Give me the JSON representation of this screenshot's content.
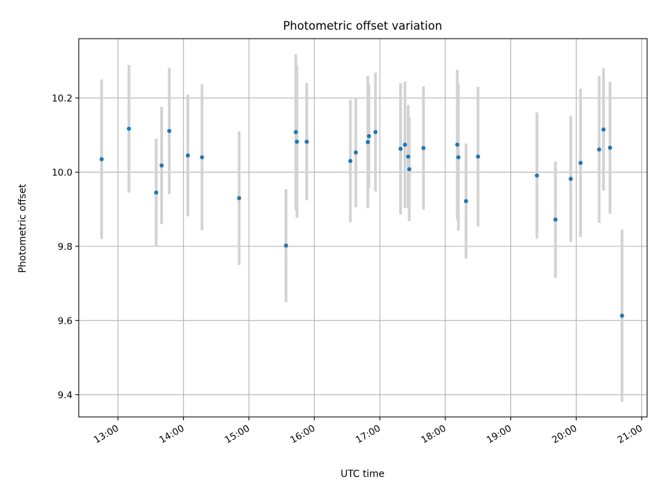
{
  "chart_data": {
    "type": "scatter",
    "title": "Photometric offset variation",
    "xlabel": "UTC time",
    "ylabel": "Photometric offset",
    "x_ticks": [
      "13:00",
      "14:00",
      "15:00",
      "16:00",
      "17:00",
      "18:00",
      "19:00",
      "20:00",
      "21:00"
    ],
    "y_ticks": [
      "9.4",
      "9.6",
      "9.8",
      "10.0",
      "10.2"
    ],
    "xlim": [
      "12:24",
      "21:05"
    ],
    "ylim": [
      9.34,
      10.36
    ],
    "grid": true,
    "colors": {
      "marker": "#1f77b4",
      "errorbar": "#d3d3d3",
      "grid": "#b0b0b0"
    },
    "points": [
      {
        "t": "12:45",
        "y": 10.035,
        "err": 0.215
      },
      {
        "t": "13:10",
        "y": 10.117,
        "err": 0.172
      },
      {
        "t": "13:35",
        "y": 9.945,
        "err": 0.145
      },
      {
        "t": "13:40",
        "y": 10.018,
        "err": 0.158
      },
      {
        "t": "13:47",
        "y": 10.111,
        "err": 0.17
      },
      {
        "t": "14:04",
        "y": 10.045,
        "err": 0.164
      },
      {
        "t": "14:17",
        "y": 10.04,
        "err": 0.197
      },
      {
        "t": "14:51",
        "y": 9.93,
        "err": 0.18
      },
      {
        "t": "15:34",
        "y": 9.802,
        "err": 0.152
      },
      {
        "t": "15:43",
        "y": 10.108,
        "err": 0.21
      },
      {
        "t": "15:44",
        "y": 10.082,
        "err": 0.205
      },
      {
        "t": "15:53",
        "y": 10.082,
        "err": 0.158
      },
      {
        "t": "16:33",
        "y": 10.03,
        "err": 0.165
      },
      {
        "t": "16:38",
        "y": 10.053,
        "err": 0.148
      },
      {
        "t": "16:49",
        "y": 10.081,
        "err": 0.178
      },
      {
        "t": "16:50",
        "y": 10.097,
        "err": 0.14
      },
      {
        "t": "16:56",
        "y": 10.108,
        "err": 0.16
      },
      {
        "t": "17:19",
        "y": 10.063,
        "err": 0.177
      },
      {
        "t": "17:23",
        "y": 10.074,
        "err": 0.17
      },
      {
        "t": "17:26",
        "y": 10.042,
        "err": 0.139
      },
      {
        "t": "17:27",
        "y": 10.008,
        "err": 0.14
      },
      {
        "t": "17:40",
        "y": 10.065,
        "err": 0.166
      },
      {
        "t": "18:11",
        "y": 10.074,
        "err": 0.202
      },
      {
        "t": "18:12",
        "y": 10.04,
        "err": 0.198
      },
      {
        "t": "18:19",
        "y": 9.922,
        "err": 0.155
      },
      {
        "t": "18:30",
        "y": 10.042,
        "err": 0.188
      },
      {
        "t": "19:24",
        "y": 9.991,
        "err": 0.17
      },
      {
        "t": "19:41",
        "y": 9.872,
        "err": 0.157
      },
      {
        "t": "19:55",
        "y": 9.982,
        "err": 0.17
      },
      {
        "t": "20:04",
        "y": 10.025,
        "err": 0.2
      },
      {
        "t": "20:21",
        "y": 10.061,
        "err": 0.198
      },
      {
        "t": "20:25",
        "y": 10.115,
        "err": 0.165
      },
      {
        "t": "20:31",
        "y": 10.066,
        "err": 0.178
      },
      {
        "t": "20:42",
        "y": 9.613,
        "err": 0.232
      }
    ]
  }
}
